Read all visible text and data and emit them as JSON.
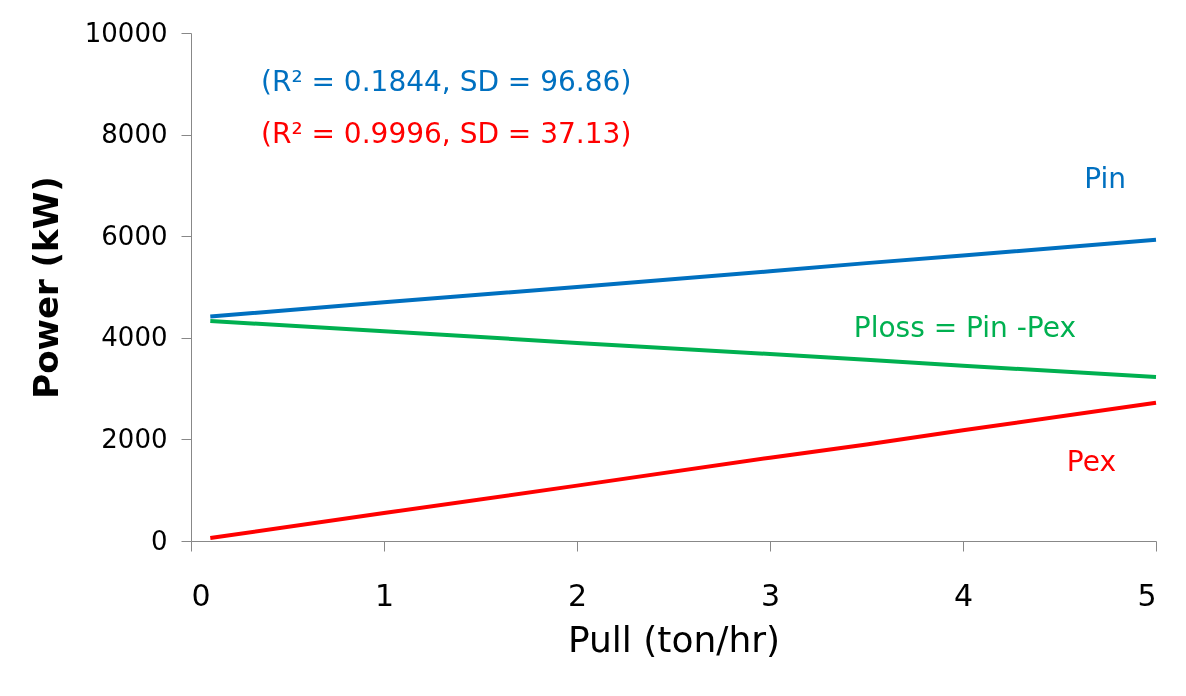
{
  "chart_data": {
    "type": "line",
    "xlabel": "Pull (ton/hr)",
    "ylabel": "Power (kW)",
    "xlim": [
      0,
      5
    ],
    "xticks": [
      0,
      1,
      2,
      3,
      4,
      5
    ],
    "ylim": [
      0,
      10000
    ],
    "yticks": [
      0,
      2000,
      4000,
      6000,
      8000,
      10000
    ],
    "grid": false,
    "annotations": [
      "(R² = 0.1844, SD = 96.86)",
      "(R² = 0.9996, SD = 37.13)"
    ],
    "x": [
      0.1,
      1,
      2,
      3,
      3.5,
      4,
      5
    ],
    "series": [
      {
        "name": "Pin",
        "color": "#0070c0",
        "values": [
          4420,
          4700,
          5000,
          5310,
          5470,
          5620,
          5930
        ]
      },
      {
        "name": "Pex",
        "color": "#ff0000",
        "values": [
          60,
          550,
          1090,
          1640,
          1900,
          2180,
          2720
        ]
      },
      {
        "name": "Ploss = Pin -Pex",
        "color": "#00b050",
        "values": [
          4330,
          4130,
          3900,
          3680,
          3570,
          3450,
          3230
        ]
      }
    ]
  }
}
